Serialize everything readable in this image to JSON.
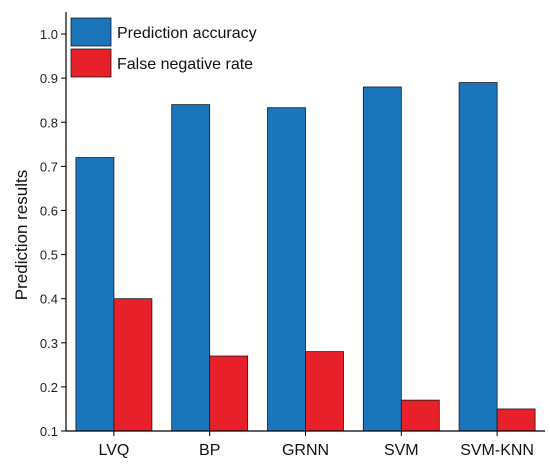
{
  "chart_data": {
    "type": "bar",
    "title": "",
    "xlabel": "",
    "ylabel": "Prediction results",
    "ylim": [
      0.1,
      1.05
    ],
    "yticks": [
      "0.1",
      "0.2",
      "0.3",
      "0.4",
      "0.5",
      "0.6",
      "0.7",
      "0.8",
      "0.9",
      "1.0"
    ],
    "categories": [
      "LVQ",
      "BP",
      "GRNN",
      "SVM",
      "SVM-KNN"
    ],
    "series": [
      {
        "name": "Prediction accuracy",
        "color": "#1b75bb",
        "values": [
          0.72,
          0.84,
          0.833,
          0.88,
          0.89
        ]
      },
      {
        "name": "False negative rate",
        "color": "#e8202a",
        "values": [
          0.4,
          0.27,
          0.28,
          0.17,
          0.15
        ]
      }
    ],
    "legend": "top-left",
    "grid": false
  }
}
